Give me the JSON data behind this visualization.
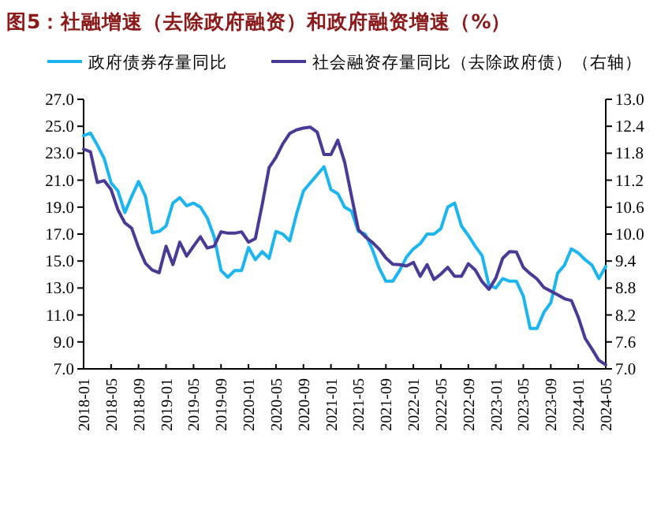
{
  "chart_data": {
    "type": "line",
    "title": "图5：社融增速（去除政府融资）和政府融资增速（%）",
    "x": [
      "2018-01",
      "2018-02",
      "2018-03",
      "2018-04",
      "2018-05",
      "2018-06",
      "2018-07",
      "2018-08",
      "2018-09",
      "2018-10",
      "2018-11",
      "2018-12",
      "2019-01",
      "2019-02",
      "2019-03",
      "2019-04",
      "2019-05",
      "2019-06",
      "2019-07",
      "2019-08",
      "2019-09",
      "2019-10",
      "2019-11",
      "2019-12",
      "2020-01",
      "2020-02",
      "2020-03",
      "2020-04",
      "2020-05",
      "2020-06",
      "2020-07",
      "2020-08",
      "2020-09",
      "2020-10",
      "2020-11",
      "2020-12",
      "2021-01",
      "2021-02",
      "2021-03",
      "2021-04",
      "2021-05",
      "2021-06",
      "2021-07",
      "2021-08",
      "2021-09",
      "2021-10",
      "2021-11",
      "2021-12",
      "2022-01",
      "2022-02",
      "2022-03",
      "2022-04",
      "2022-05",
      "2022-06",
      "2022-07",
      "2022-08",
      "2022-09",
      "2022-10",
      "2022-11",
      "2022-12",
      "2023-01",
      "2023-02",
      "2023-03",
      "2023-04",
      "2023-05",
      "2023-06",
      "2023-07",
      "2023-08",
      "2023-09",
      "2023-10",
      "2023-11",
      "2023-12",
      "2024-01",
      "2024-02",
      "2024-03",
      "2024-04",
      "2024-05"
    ],
    "series": [
      {
        "name": "政府债券存量同比",
        "color": "#1cb5ef",
        "values": [
          24.3,
          24.5,
          23.6,
          22.6,
          20.8,
          20.2,
          18.6,
          19.8,
          20.9,
          19.8,
          17.1,
          17.2,
          17.6,
          19.3,
          19.7,
          19.1,
          19.3,
          19.0,
          18.2,
          16.8,
          14.3,
          13.8,
          14.3,
          14.3,
          16.0,
          15.1,
          15.7,
          15.2,
          17.2,
          17.0,
          16.5,
          18.5,
          20.2,
          20.8,
          21.4,
          22.0,
          20.3,
          20.0,
          19.0,
          18.7,
          17.2,
          17.0,
          15.9,
          14.5,
          13.5,
          13.5,
          14.3,
          15.3,
          15.9,
          16.3,
          17.0,
          17.0,
          17.4,
          19.0,
          19.3,
          17.6,
          16.9,
          16.1,
          15.4,
          13.2,
          13.0,
          13.7,
          13.5,
          13.5,
          12.4,
          10.0,
          10.0,
          11.2,
          11.9,
          14.1,
          14.7,
          15.9,
          15.6,
          15.1,
          14.7,
          13.7,
          14.6
        ]
      },
      {
        "name": "社会融资存量同比（去除政府债）（右轴）",
        "color": "#4a3a96",
        "axis": "y2",
        "values": [
          11.89,
          11.83,
          11.15,
          11.19,
          10.99,
          10.54,
          10.25,
          10.13,
          9.7,
          9.35,
          9.2,
          9.14,
          9.73,
          9.32,
          9.82,
          9.51,
          9.73,
          9.94,
          9.69,
          9.73,
          10.05,
          10.02,
          10.02,
          10.05,
          9.82,
          9.9,
          10.66,
          11.48,
          11.71,
          12.01,
          12.24,
          12.32,
          12.36,
          12.38,
          12.27,
          11.77,
          11.77,
          12.09,
          11.6,
          10.84,
          10.1,
          9.94,
          9.82,
          9.67,
          9.47,
          9.33,
          9.32,
          9.29,
          9.37,
          9.06,
          9.32,
          8.99,
          9.11,
          9.26,
          9.06,
          9.06,
          9.34,
          9.2,
          8.94,
          8.77,
          9.02,
          9.46,
          9.61,
          9.6,
          9.26,
          9.12,
          9.0,
          8.81,
          8.73,
          8.65,
          8.56,
          8.52,
          8.15,
          7.68,
          7.44,
          7.19,
          7.09
        ]
      }
    ],
    "xlim": [
      "2018-01",
      "2024-05"
    ],
    "xticks": [
      "2018-01",
      "2018-05",
      "2018-09",
      "2019-01",
      "2019-05",
      "2019-09",
      "2020-01",
      "2020-05",
      "2020-09",
      "2021-01",
      "2021-05",
      "2021-09",
      "2022-01",
      "2022-05",
      "2022-09",
      "2023-01",
      "2023-05",
      "2023-09",
      "2024-01",
      "2024-05"
    ],
    "ylim": [
      7,
      27
    ],
    "yticks": [
      {
        "value": 7,
        "label": "7.0"
      },
      {
        "value": 9,
        "label": "9.0"
      },
      {
        "value": 11,
        "label": "11.0"
      },
      {
        "value": 13,
        "label": "13.0"
      },
      {
        "value": 15,
        "label": "15.0"
      },
      {
        "value": 17,
        "label": "17.0"
      },
      {
        "value": 19,
        "label": "19.0"
      },
      {
        "value": 21,
        "label": "21.0"
      },
      {
        "value": 23,
        "label": "23.0"
      },
      {
        "value": 25,
        "label": "25.0"
      },
      {
        "value": 27,
        "label": "27.0"
      }
    ],
    "y2lim": [
      7,
      13
    ],
    "y2ticks": [
      {
        "value": 7,
        "label": "7.0"
      },
      {
        "value": 7.6,
        "label": "7.6"
      },
      {
        "value": 8.2,
        "label": "8.2"
      },
      {
        "value": 8.8,
        "label": "8.8"
      },
      {
        "value": 9.4,
        "label": "9.4"
      },
      {
        "value": 10,
        "label": "10.0"
      },
      {
        "value": 10.6,
        "label": "10.6"
      },
      {
        "value": 11.2,
        "label": "11.2"
      },
      {
        "value": 11.8,
        "label": "11.8"
      },
      {
        "value": 12.4,
        "label": "12.4"
      },
      {
        "value": 13,
        "label": "13.0"
      }
    ],
    "legend": "top",
    "grid": false,
    "marker": "none",
    "line_style": "solid"
  }
}
